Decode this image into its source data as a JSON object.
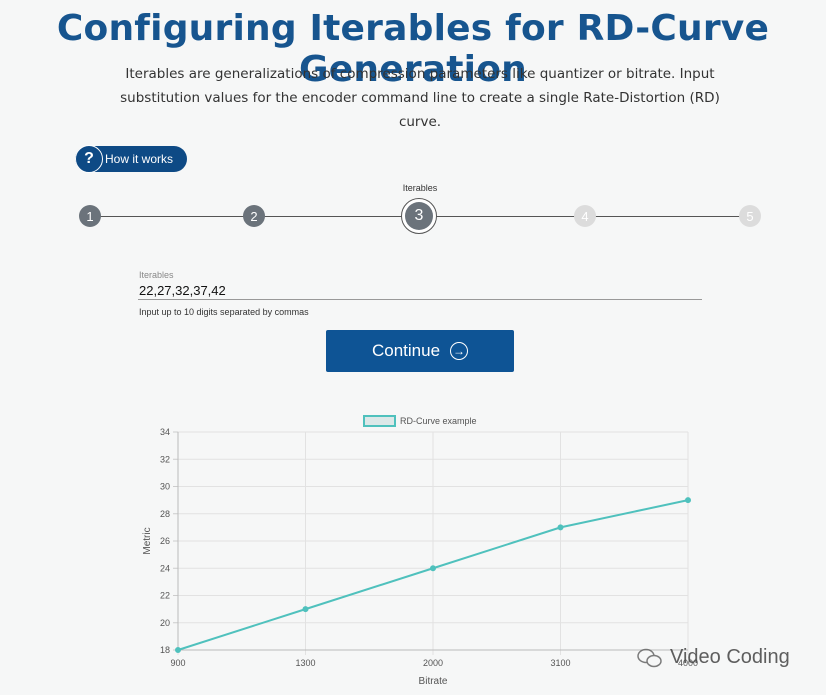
{
  "header": {
    "title": "Configuring Iterables for RD-Curve Generation",
    "subtitle": "Iterables are generalizations of compression parameters like quantizer or bitrate. Input substitution values for the encoder command line to create a single Rate-Distortion (RD) curve."
  },
  "how_it_works": {
    "icon": "?",
    "label": "How it works"
  },
  "stepper": {
    "active_caption": "Iterables",
    "steps": [
      "1",
      "2",
      "3",
      "4",
      "5"
    ],
    "active_index": 2
  },
  "form": {
    "label": "Iterables",
    "value": "22,27,32,37,42",
    "help": "Input up to 10 digits separated by commas"
  },
  "continue_button": {
    "label": "Continue",
    "icon": "arrow-right-circle-icon"
  },
  "colors": {
    "brand": "#17558f",
    "button": "#0e5495",
    "series": "#4fc1bd"
  },
  "watermark": {
    "text": "Video Coding",
    "icon": "wechat-icon"
  },
  "chart_data": {
    "type": "line",
    "title": "",
    "legend": [
      "RD-Curve example"
    ],
    "legend_position": "top-center",
    "categories": [
      "900",
      "1300",
      "2000",
      "3100",
      "4000"
    ],
    "series": [
      {
        "name": "RD-Curve example",
        "values": [
          18,
          21,
          24,
          27,
          29
        ]
      }
    ],
    "xlabel": "Bitrate",
    "ylabel": "Metric",
    "ylim": [
      18,
      34
    ],
    "yticks": [
      "18",
      "20",
      "22",
      "24",
      "26",
      "28",
      "30",
      "32",
      "34"
    ],
    "grid": true
  }
}
